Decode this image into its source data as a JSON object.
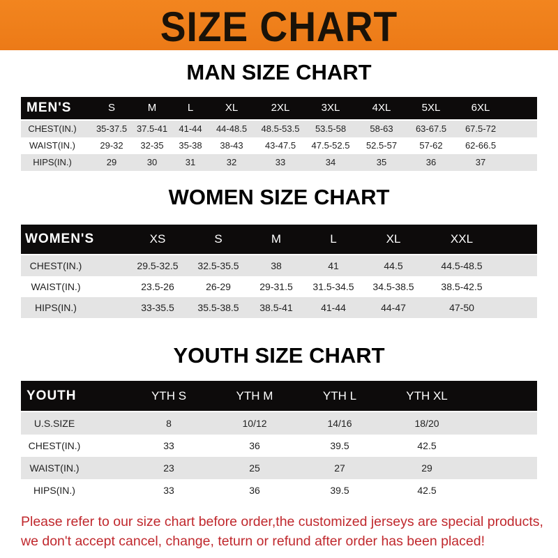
{
  "banner": {
    "title": "SIZE CHART",
    "color": "#ef801c"
  },
  "men": {
    "title": "MAN SIZE CHART",
    "header": [
      "MEN'S",
      "S",
      "M",
      "L",
      "XL",
      "2XL",
      "3XL",
      "4XL",
      "5XL",
      "6XL"
    ],
    "rows": [
      [
        "CHEST(IN.)",
        "35-37.5",
        "37.5-41",
        "41-44",
        "44-48.5",
        "48.5-53.5",
        "53.5-58",
        "58-63",
        "63-67.5",
        "67.5-72"
      ],
      [
        "WAIST(IN.)",
        "29-32",
        "32-35",
        "35-38",
        "38-43",
        "43-47.5",
        "47.5-52.5",
        "52.5-57",
        "57-62",
        "62-66.5"
      ],
      [
        "HIPS(IN.)",
        "29",
        "30",
        "31",
        "32",
        "33",
        "34",
        "35",
        "36",
        "37"
      ]
    ]
  },
  "women": {
    "title": "WOMEN SIZE CHART",
    "header": [
      "WOMEN'S",
      "XS",
      "S",
      "M",
      "L",
      "XL",
      "XXL"
    ],
    "rows": [
      [
        "CHEST(IN.)",
        "29.5-32.5",
        "32.5-35.5",
        "38",
        "41",
        "44.5",
        "44.5-48.5"
      ],
      [
        "WAIST(IN.)",
        "23.5-26",
        "26-29",
        "29-31.5",
        "31.5-34.5",
        "34.5-38.5",
        "38.5-42.5"
      ],
      [
        "HIPS(IN.)",
        "33-35.5",
        "35.5-38.5",
        "38.5-41",
        "41-44",
        "44-47",
        "47-50"
      ]
    ]
  },
  "youth": {
    "title": "YOUTH SIZE CHART",
    "header": [
      "YOUTH",
      "YTH S",
      "YTH M",
      "YTH L",
      "YTH XL"
    ],
    "rows": [
      [
        "U.S.SIZE",
        "8",
        "10/12",
        "14/16",
        "18/20"
      ],
      [
        "CHEST(IN.)",
        "33",
        "36",
        "39.5",
        "42.5"
      ],
      [
        "WAIST(IN.)",
        "23",
        "25",
        "27",
        "29"
      ],
      [
        "HIPS(IN.)",
        "33",
        "36",
        "39.5",
        "42.5"
      ]
    ]
  },
  "footer": {
    "line1": "Please refer to our size chart before order,the customized jerseys are special products,",
    "line2": "we don't accept cancel, change, teturn or refund after order has been placed!",
    "color": "#c0282d"
  }
}
